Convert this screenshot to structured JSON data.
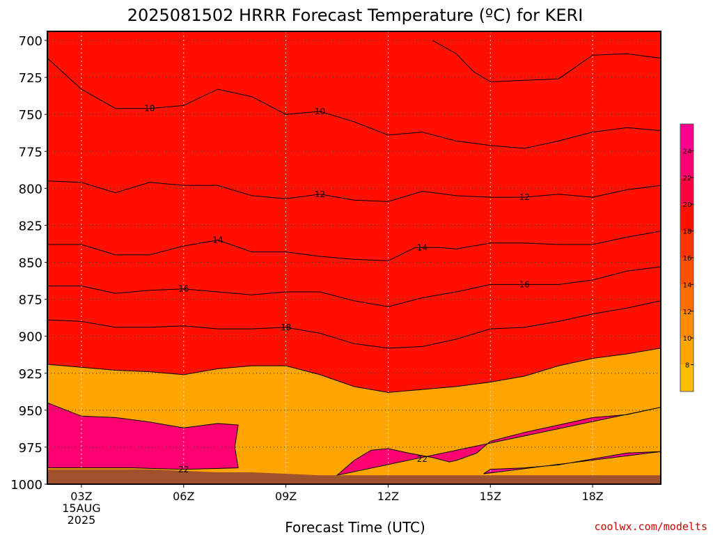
{
  "chart_data": {
    "type": "heatmap",
    "title": "2025081502 HRRR Forecast Temperature (ºC) for KERI",
    "xlabel": "Forecast Time (UTC)",
    "ylabel": "",
    "credit": "coolwx.com/modelts",
    "x_ticks": [
      {
        "hour": 3,
        "lines": [
          "03Z",
          "15AUG",
          "2025"
        ]
      },
      {
        "hour": 6,
        "lines": [
          "06Z"
        ]
      },
      {
        "hour": 9,
        "lines": [
          "09Z"
        ]
      },
      {
        "hour": 12,
        "lines": [
          "12Z"
        ]
      },
      {
        "hour": 15,
        "lines": [
          "15Z"
        ]
      },
      {
        "hour": 18,
        "lines": [
          "18Z"
        ]
      }
    ],
    "xlim": [
      2,
      20
    ],
    "ylim": [
      1000,
      700
    ],
    "y_ticks": [
      700,
      725,
      750,
      775,
      800,
      825,
      850,
      875,
      900,
      925,
      950,
      975,
      1000
    ],
    "grid": true,
    "colorbar": {
      "labels": [
        "8",
        "10",
        "12",
        "14",
        "16",
        "18",
        "20",
        "22",
        "24"
      ],
      "bands": [
        {
          "from": 6,
          "to": 8,
          "color": "#FFBF00"
        },
        {
          "from": 8,
          "to": 10,
          "color": "#FFA500"
        },
        {
          "from": 10,
          "to": 12,
          "color": "#FF8C00"
        },
        {
          "from": 12,
          "to": 14,
          "color": "#FF6E00"
        },
        {
          "from": 14,
          "to": 16,
          "color": "#FF5000"
        },
        {
          "from": 16,
          "to": 18,
          "color": "#FF3300"
        },
        {
          "from": 18,
          "to": 20,
          "color": "#FF1000"
        },
        {
          "from": 20,
          "to": 22,
          "color": "#FF0040"
        },
        {
          "from": 22,
          "to": 24,
          "color": "#FF0070"
        },
        {
          "from": 24,
          "to": 26,
          "color": "#FF0090"
        }
      ]
    },
    "terrain_color": "#A0522D",
    "contours": [
      {
        "level": 8,
        "points": [
          [
            13.3,
            700
          ],
          [
            14,
            709
          ],
          [
            14.5,
            721
          ],
          [
            15,
            728
          ],
          [
            16,
            727
          ],
          [
            17,
            726
          ],
          [
            18,
            710
          ],
          [
            19,
            709
          ],
          [
            20,
            712
          ]
        ]
      },
      {
        "level": 10,
        "points": [
          [
            2,
            712
          ],
          [
            3,
            733
          ],
          [
            4,
            746
          ],
          [
            5,
            746
          ],
          [
            6,
            744
          ],
          [
            7,
            733
          ],
          [
            8,
            738
          ],
          [
            9,
            750
          ],
          [
            10,
            748
          ],
          [
            11,
            755
          ],
          [
            12,
            764
          ],
          [
            13,
            762
          ],
          [
            14,
            768
          ],
          [
            15,
            771
          ],
          [
            16,
            773
          ],
          [
            17,
            768
          ],
          [
            18,
            762
          ],
          [
            19,
            759
          ],
          [
            20,
            761
          ]
        ]
      },
      {
        "level": 12,
        "points": [
          [
            2,
            795
          ],
          [
            3,
            796
          ],
          [
            4,
            803
          ],
          [
            5,
            796
          ],
          [
            6,
            798
          ],
          [
            7,
            798
          ],
          [
            8,
            805
          ],
          [
            9,
            807
          ],
          [
            10,
            804
          ],
          [
            11,
            808
          ],
          [
            12,
            809
          ],
          [
            13,
            802
          ],
          [
            14,
            805
          ],
          [
            15,
            806
          ],
          [
            16,
            806
          ],
          [
            17,
            804
          ],
          [
            18,
            806
          ],
          [
            19,
            801
          ],
          [
            20,
            798
          ]
        ]
      },
      {
        "level": 14,
        "points": [
          [
            2,
            838
          ],
          [
            3,
            838
          ],
          [
            4,
            845
          ],
          [
            5,
            845
          ],
          [
            6,
            839
          ],
          [
            7,
            835
          ],
          [
            8,
            843
          ],
          [
            9,
            843
          ],
          [
            10,
            846
          ],
          [
            11,
            848
          ],
          [
            12,
            849
          ],
          [
            12.8,
            840
          ],
          [
            13.5,
            840
          ],
          [
            14,
            841
          ],
          [
            15,
            837
          ],
          [
            16,
            837
          ],
          [
            17,
            838
          ],
          [
            18,
            838
          ],
          [
            19,
            833
          ],
          [
            20,
            829
          ]
        ]
      },
      {
        "level": 16,
        "points": [
          [
            2,
            866
          ],
          [
            3,
            866
          ],
          [
            4,
            871
          ],
          [
            5,
            869
          ],
          [
            6,
            868
          ],
          [
            7,
            870
          ],
          [
            8,
            872
          ],
          [
            9,
            870
          ],
          [
            10,
            870
          ],
          [
            11,
            876
          ],
          [
            12,
            880
          ],
          [
            13,
            874
          ],
          [
            14,
            870
          ],
          [
            15,
            865
          ],
          [
            16,
            865
          ],
          [
            17,
            865
          ],
          [
            18,
            862
          ],
          [
            19,
            856
          ],
          [
            20,
            853
          ]
        ]
      },
      {
        "level": 18,
        "points": [
          [
            2,
            889
          ],
          [
            3,
            890
          ],
          [
            4,
            894
          ],
          [
            5,
            894
          ],
          [
            6,
            893
          ],
          [
            7,
            895
          ],
          [
            8,
            895
          ],
          [
            9,
            894
          ],
          [
            10,
            898
          ],
          [
            11,
            905
          ],
          [
            12,
            908
          ],
          [
            13,
            907
          ],
          [
            14,
            902
          ],
          [
            15,
            895
          ],
          [
            16,
            894
          ],
          [
            17,
            890
          ],
          [
            18,
            885
          ],
          [
            19,
            881
          ],
          [
            20,
            876
          ]
        ]
      },
      {
        "level": 20,
        "points": [
          [
            2,
            919
          ],
          [
            3,
            921
          ],
          [
            4,
            923
          ],
          [
            5,
            924
          ],
          [
            6,
            926
          ],
          [
            7,
            922
          ],
          [
            8,
            920
          ],
          [
            9,
            920
          ],
          [
            10,
            926
          ],
          [
            11,
            934
          ],
          [
            12,
            938
          ],
          [
            13,
            936
          ],
          [
            14,
            934
          ],
          [
            15,
            931
          ],
          [
            16,
            927
          ],
          [
            17,
            920
          ],
          [
            18,
            915
          ],
          [
            19,
            912
          ],
          [
            20,
            908
          ]
        ]
      },
      {
        "level": 22,
        "points": [
          [
            2,
            945
          ],
          [
            3,
            954
          ],
          [
            4,
            955
          ],
          [
            5,
            958
          ],
          [
            6,
            962
          ],
          [
            7,
            959
          ],
          [
            7.6,
            960
          ],
          [
            7.5,
            975
          ],
          [
            7.6,
            989
          ],
          [
            6,
            990
          ],
          [
            4.5,
            989
          ],
          [
            2,
            989
          ]
        ]
      },
      {
        "level": 22,
        "points": [
          [
            10.5,
            994
          ],
          [
            11,
            984
          ],
          [
            11.5,
            977
          ],
          [
            12,
            976
          ],
          [
            12.6,
            979
          ],
          [
            13.3,
            982
          ],
          [
            13.8,
            985
          ],
          [
            14,
            984
          ],
          [
            14.6,
            979
          ],
          [
            15,
            971
          ],
          [
            16,
            965
          ],
          [
            17,
            960
          ],
          [
            18,
            955
          ],
          [
            19,
            953
          ],
          [
            20,
            948
          ]
        ]
      },
      {
        "level": 24,
        "points": [
          [
            14.8,
            993
          ],
          [
            15,
            990
          ],
          [
            16,
            989
          ],
          [
            17,
            987
          ],
          [
            18,
            983
          ],
          [
            19,
            979
          ],
          [
            20,
            978
          ]
        ]
      }
    ],
    "contour_labels": [
      {
        "text": "10",
        "x": 5.0,
        "y": 746
      },
      {
        "text": "10",
        "x": 10.0,
        "y": 748
      },
      {
        "text": "12",
        "x": 10.0,
        "y": 804
      },
      {
        "text": "12",
        "x": 16.0,
        "y": 806
      },
      {
        "text": "14",
        "x": 7.0,
        "y": 835
      },
      {
        "text": "14",
        "x": 13.0,
        "y": 840
      },
      {
        "text": "16",
        "x": 6.0,
        "y": 868
      },
      {
        "text": "16",
        "x": 16.0,
        "y": 865
      },
      {
        "text": "18",
        "x": 9.0,
        "y": 894
      },
      {
        "text": "22",
        "x": 13.0,
        "y": 983
      },
      {
        "text": "22",
        "x": 6.0,
        "y": 990
      }
    ],
    "terrain": [
      [
        2,
        990
      ],
      [
        3,
        990
      ],
      [
        4,
        990
      ],
      [
        5,
        990
      ],
      [
        6,
        991
      ],
      [
        7,
        992
      ],
      [
        8,
        992
      ],
      [
        9,
        993
      ],
      [
        10,
        994
      ],
      [
        11,
        994
      ],
      [
        12,
        994
      ],
      [
        13,
        994
      ],
      [
        14,
        994
      ],
      [
        15,
        994
      ],
      [
        16,
        994
      ],
      [
        17,
        994
      ],
      [
        18,
        994
      ],
      [
        19,
        994
      ],
      [
        20,
        994
      ]
    ]
  }
}
